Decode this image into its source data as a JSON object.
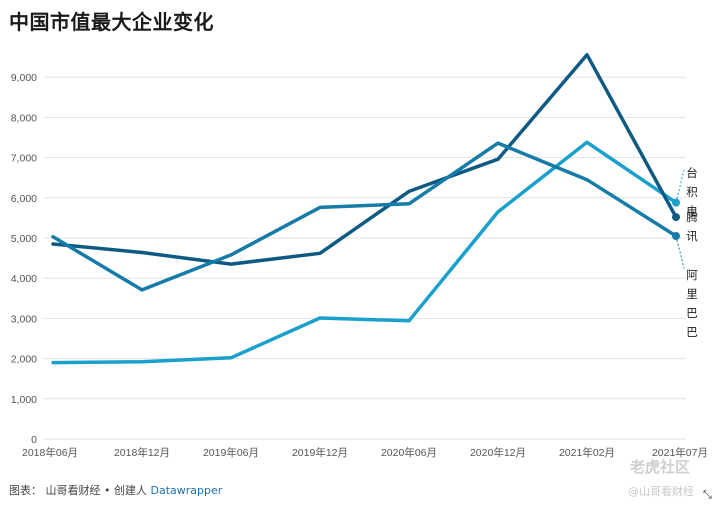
{
  "title": "中国市值最大企业变化",
  "footer": {
    "prefix": "图表：",
    "author": "山哥看财经 • 创建人",
    "tool": "Datawrapper"
  },
  "watermark": {
    "line1": "老虎社区",
    "line2": "@山哥看财经"
  },
  "resize_glyph": "⤡",
  "chart_data": {
    "type": "line",
    "title": "中国市值最大企业变化",
    "xlabel": "",
    "ylabel": "",
    "categories": [
      "2018年06月",
      "2018年12月",
      "2019年06月",
      "2019年12月",
      "2020年06月",
      "2020年12月",
      "2021年02月",
      "2021年07月"
    ],
    "ylim": [
      0,
      10000
    ],
    "yticks": [
      0,
      1000,
      2000,
      3000,
      4000,
      5000,
      6000,
      7000,
      8000,
      9000
    ],
    "ytick_labels": [
      "0",
      "1,000",
      "2,000",
      "3,000",
      "4,000",
      "5,000",
      "6,000",
      "7,000",
      "8,000",
      "9,000"
    ],
    "grid": true,
    "series": [
      {
        "name": "台积电",
        "color": "#19a0cc",
        "values": [
          1900,
          1920,
          2020,
          3010,
          2940,
          5650,
          7380,
          5880
        ]
      },
      {
        "name": "腾讯",
        "color": "#0e5a82",
        "values": [
          4850,
          4640,
          4350,
          4620,
          6160,
          6960,
          9560,
          5520
        ]
      },
      {
        "name": "阿里巴巴",
        "color": "#157ba8",
        "values": [
          5030,
          3710,
          4580,
          5760,
          5850,
          7360,
          6450,
          5050
        ]
      }
    ],
    "labels_right": {
      "台积电": "台积电",
      "腾讯": "腾讯",
      "阿里巴巴": "阿里巴巴"
    }
  }
}
